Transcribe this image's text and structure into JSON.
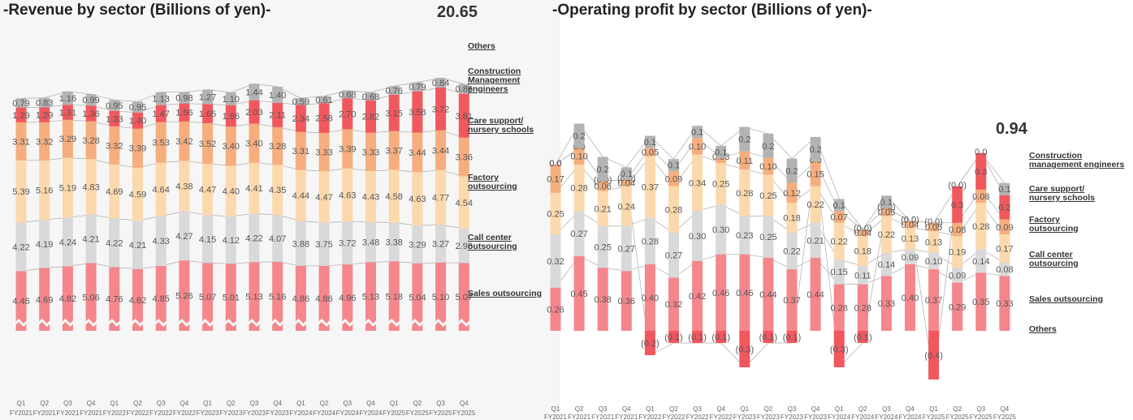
{
  "chart_data": [
    {
      "type": "bar",
      "stacked": true,
      "title": "-Revenue by sector (Billions of yen)-",
      "total_label": "20.65",
      "categories": [
        "Q1",
        "Q2",
        "Q3",
        "Q4",
        "Q1",
        "Q2",
        "Q3",
        "Q4",
        "Q1",
        "Q2",
        "Q3",
        "Q4",
        "Q1",
        "Q2",
        "Q3",
        "Q4",
        "Q1",
        "Q2",
        "Q3",
        "Q4"
      ],
      "category_years": [
        "FY2021",
        "FY2021",
        "FY2021",
        "FY2021",
        "FY2022",
        "FY2022",
        "FY2022",
        "FY2022",
        "FY2023",
        "FY2023",
        "FY2023",
        "FY2023",
        "FY2024",
        "FY2024",
        "FY2024",
        "FY2024",
        "FY2025",
        "FY2025",
        "FY2025",
        "FY2025"
      ],
      "axis_broken": true,
      "grid": false,
      "legend": "right",
      "series": [
        {
          "name": "Sales outsourcing",
          "color": "#f4868c",
          "values": [
            4.46,
            4.69,
            4.82,
            5.06,
            4.76,
            4.62,
            4.85,
            5.26,
            5.07,
            5.01,
            5.13,
            5.16,
            4.86,
            4.86,
            4.96,
            5.13,
            5.18,
            5.04,
            5.1,
            5.07
          ]
        },
        {
          "name": "Call center\noutsourcing",
          "color": "#d9d9d9",
          "values": [
            4.22,
            4.19,
            4.24,
            4.21,
            4.22,
            4.21,
            4.33,
            4.27,
            4.15,
            4.12,
            4.22,
            4.07,
            3.88,
            3.75,
            3.72,
            3.48,
            3.38,
            3.29,
            3.27,
            2.98
          ]
        },
        {
          "name": "Factory\noutsourcing",
          "color": "#fcd9ad",
          "values": [
            5.39,
            5.16,
            5.19,
            4.83,
            4.69,
            4.59,
            4.64,
            4.38,
            4.47,
            4.4,
            4.41,
            4.35,
            4.44,
            4.47,
            4.63,
            4.43,
            4.58,
            4.63,
            4.77,
            4.54
          ]
        },
        {
          "name": "Care support/\nnursery schools",
          "color": "#f6ae7e",
          "values": [
            3.31,
            3.32,
            3.29,
            3.28,
            3.32,
            3.39,
            3.53,
            3.42,
            3.52,
            3.4,
            3.4,
            3.28,
            3.31,
            3.33,
            3.39,
            3.33,
            3.37,
            3.44,
            3.44,
            3.36
          ]
        },
        {
          "name": "Construction\nManagement\nengineers",
          "color": "#f1585e",
          "values": [
            1.29,
            1.29,
            1.31,
            1.36,
            1.33,
            1.4,
            1.47,
            1.56,
            1.65,
            1.86,
            2.03,
            2.11,
            2.34,
            2.58,
            2.7,
            2.82,
            3.15,
            3.58,
            3.72,
            3.81
          ]
        },
        {
          "name": "Others",
          "color": "#b3b3b3",
          "values": [
            0.79,
            0.83,
            1.16,
            0.99,
            0.95,
            0.95,
            1.13,
            0.98,
            1.27,
            1.1,
            1.44,
            1.4,
            0.59,
            0.61,
            0.68,
            0.68,
            0.76,
            0.79,
            0.84,
            0.86
          ]
        }
      ]
    },
    {
      "type": "bar",
      "stacked": true,
      "title": "-Operating profit by sector (Billions of yen)-",
      "total_label": "0.94",
      "categories": [
        "Q1",
        "Q2",
        "Q3",
        "Q4",
        "Q1",
        "Q2",
        "Q3",
        "Q4",
        "Q1",
        "Q2",
        "Q3",
        "Q4",
        "Q1",
        "Q2",
        "Q3",
        "Q4",
        "Q1",
        "Q2",
        "Q3",
        "Q4"
      ],
      "category_years": [
        "FY2021",
        "FY2021",
        "FY2021",
        "FY2021",
        "FY2022",
        "FY2022",
        "FY2022",
        "FY2022",
        "FY2023",
        "FY2023",
        "FY2023",
        "FY2023",
        "FY2024",
        "FY2024",
        "FY2024",
        "FY2024",
        "FY2025",
        "FY2025",
        "FY2025",
        "FY2025"
      ],
      "grid": false,
      "legend": "right",
      "series": [
        {
          "name": "Sales outsourcing",
          "color": "#f4868c",
          "values": [
            0.26,
            0.45,
            0.38,
            0.36,
            0.4,
            0.32,
            0.42,
            0.46,
            0.46,
            0.44,
            0.37,
            0.44,
            0.28,
            0.28,
            0.33,
            0.4,
            0.37,
            0.29,
            0.35,
            0.33
          ]
        },
        {
          "name": "Call center\noutsourcing",
          "color": "#d9d9d9",
          "values": [
            0.32,
            0.27,
            0.25,
            0.27,
            0.28,
            0.27,
            0.3,
            0.3,
            0.23,
            0.25,
            0.22,
            0.21,
            0.15,
            0.11,
            0.14,
            0.09,
            0.1,
            0.09,
            0.14,
            0.08
          ]
        },
        {
          "name": "Factory\noutsourcing",
          "color": "#fcd9ad",
          "values": [
            0.25,
            0.28,
            0.21,
            0.24,
            0.37,
            0.28,
            0.34,
            0.25,
            0.28,
            0.25,
            0.18,
            0.22,
            0.22,
            0.18,
            0.22,
            0.13,
            0.13,
            0.19,
            0.28,
            0.17
          ]
        },
        {
          "name": "Care support/\nnursery schools",
          "color": "#f6ae7e",
          "values": [
            0.17,
            0.1,
            0.06,
            0.04,
            0.05,
            0.09,
            0.1,
            0.03,
            0.11,
            0.1,
            0.12,
            0.15,
            0.07,
            0.04,
            0.05,
            0.04,
            0.05,
            0.08,
            0.08,
            0.09
          ]
        },
        {
          "name": "Construction management engineers",
          "color": "#f1585e",
          "values": [
            0.0,
            0.0,
            0.0,
            0.0,
            -0.2,
            -0.1,
            -0.1,
            -0.1,
            -0.3,
            -0.1,
            -0.1,
            0.0,
            -0.3,
            -0.1,
            0.0,
            0.0,
            -0.4,
            0.3,
            0.3,
            0.2
          ]
        },
        {
          "name": "Others",
          "color": "#b3b3b3",
          "values": [
            0.0,
            0.2,
            0.2,
            0.1,
            0.1,
            0.1,
            0.1,
            0.1,
            0.2,
            0.2,
            0.2,
            0.2,
            0.1,
            0.0,
            0.1,
            0.0,
            0.0,
            0.0,
            0.0,
            0.1
          ]
        }
      ],
      "labels": {
        "Sales outsourcing": [
          "0.26",
          "0.45",
          "0.38",
          "0.36",
          "0.40",
          "0.32",
          "0.42",
          "0.46",
          "0.46",
          "0.44",
          "0.37",
          "0.44",
          "0.28",
          "0.28",
          "0.33",
          "0.40",
          "0.37",
          "0.29",
          "0.35",
          "0.33"
        ],
        "Call center\noutsourcing": [
          "0.32",
          "0.27",
          "0.25",
          "0.27",
          "0.28",
          "0.27",
          "0.30",
          "0.30",
          "0.23",
          "0.25",
          "0.22",
          "0.21",
          "0.15",
          "0.11",
          "0.14",
          "0.09",
          "0.10",
          "0.09",
          "0.14",
          "0.08"
        ],
        "Factory\noutsourcing": [
          "0.25",
          "0.28",
          "0.21",
          "0.24",
          "0.37",
          "0.28",
          "0.34",
          "0.25",
          "0.28",
          "0.25",
          "0.18",
          "0.22",
          "0.22",
          "0.18",
          "0.22",
          "0.13",
          "0.13",
          "0.19",
          "0.28",
          "0.17"
        ],
        "Care support/\nnursery schools": [
          "0.17",
          "0.10",
          "0.06",
          "0.04",
          "0.05",
          "0.09",
          "0.10",
          "0.03",
          "0.11",
          "0.10",
          "0.12",
          "0.15",
          "0.07",
          "0.04",
          "0.05",
          "0.04",
          "0.05",
          "0.08",
          "0.08",
          "0.09"
        ],
        "Construction management engineers": [
          "0.0",
          "0.0",
          "(0.0)",
          "(0.0)",
          "(0.2)",
          "(0.1)",
          "(0.1)",
          "(0.1)",
          "(0.3)",
          "(0.1)",
          "(0.1)",
          "0.0",
          "(0.3)",
          "(0.1)",
          "(0.0)",
          "(0.0)",
          "(0.4)",
          "0.3",
          "0.3",
          "0.2"
        ],
        "Others": [
          "0.0",
          "0.2",
          "0.2",
          "0.1",
          "0.1",
          "0.1",
          "0.1",
          "0.1",
          "0.2",
          "0.2",
          "0.2",
          "0.2",
          "0.1",
          "(0.0)",
          "0.1",
          "0.0",
          "(0.0)",
          "(0.0)",
          "0.0",
          "0.1"
        ]
      },
      "legend_entries": [
        "Construction management engineers",
        "Care support/\nnursery schools",
        "Factory\noutsourcing",
        "Call center\noutsourcing",
        "Sales outsourcing",
        "Others"
      ]
    }
  ]
}
